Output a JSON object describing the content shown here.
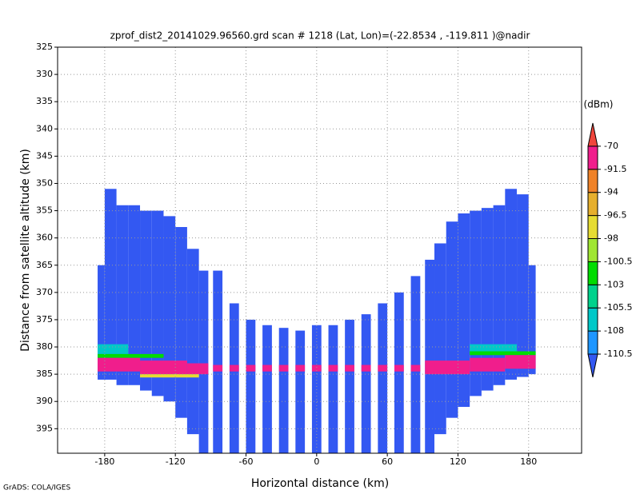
{
  "chart_data": {
    "type": "heatmap",
    "title": "zprof_dist2_20141029.96560.grd  scan # 1218  (Lat, Lon)=(-22.8534 , -119.811 )@nadir",
    "x_label": "Horizontal distance (km)",
    "y_label": "Distance from satellite altitude (km)",
    "footer": "GrADS: COLA/IGES",
    "colorbar_unit": "(dBm)",
    "xlim": [
      -220,
      225
    ],
    "xticks": [
      -180,
      -120,
      -60,
      0,
      60,
      120,
      180
    ],
    "ylim": [
      325,
      399.5
    ],
    "y_inverted": true,
    "yticks": [
      325,
      330,
      335,
      340,
      345,
      350,
      355,
      360,
      365,
      370,
      375,
      380,
      385,
      390,
      395
    ],
    "grid": true,
    "levels": [
      -110.5,
      -108,
      -105.5,
      -103,
      -100.5,
      -98,
      -96.5,
      -94,
      -91.5,
      -70
    ],
    "colors": [
      "#3358f2",
      "#1e96ff",
      "#00c8c8",
      "#00d28c",
      "#00dc00",
      "#a0e632",
      "#e6dc32",
      "#e6af2d",
      "#f08228",
      "#f01e8c",
      "#f0463c"
    ],
    "cells": [
      {
        "x": [
          -186,
          -180
        ],
        "alt": [
          365,
          386
        ],
        "dBm": -115
      },
      {
        "x": [
          -180,
          -170
        ],
        "alt": [
          351,
          386
        ],
        "dBm": -115
      },
      {
        "x": [
          -170,
          -160
        ],
        "alt": [
          354,
          387
        ],
        "dBm": -115
      },
      {
        "x": [
          -160,
          -150
        ],
        "alt": [
          354,
          387
        ],
        "dBm": -115
      },
      {
        "x": [
          -150,
          -140
        ],
        "alt": [
          355,
          388
        ],
        "dBm": -115
      },
      {
        "x": [
          -140,
          -130
        ],
        "alt": [
          355,
          389
        ],
        "dBm": -115
      },
      {
        "x": [
          -130,
          -120
        ],
        "alt": [
          356,
          390
        ],
        "dBm": -115
      },
      {
        "x": [
          -120,
          -110
        ],
        "alt": [
          358,
          393
        ],
        "dBm": -115
      },
      {
        "x": [
          -110,
          -100
        ],
        "alt": [
          362,
          396
        ],
        "dBm": -115
      },
      {
        "x": [
          -100,
          -92
        ],
        "alt": [
          366,
          399.5
        ],
        "dBm": -115
      },
      {
        "x": [
          -88,
          -80
        ],
        "alt": [
          366,
          399.5
        ],
        "dBm": -115
      },
      {
        "x": [
          -74,
          -66
        ],
        "alt": [
          372,
          399.5
        ],
        "dBm": -115
      },
      {
        "x": [
          -60,
          -52
        ],
        "alt": [
          375,
          399.5
        ],
        "dBm": -115
      },
      {
        "x": [
          -46,
          -38
        ],
        "alt": [
          376,
          399.5
        ],
        "dBm": -115
      },
      {
        "x": [
          -32,
          -24
        ],
        "alt": [
          376.5,
          399.5
        ],
        "dBm": -115
      },
      {
        "x": [
          -18,
          -10
        ],
        "alt": [
          377,
          399.5
        ],
        "dBm": -115
      },
      {
        "x": [
          -4,
          4
        ],
        "alt": [
          376,
          399.5
        ],
        "dBm": -115
      },
      {
        "x": [
          10,
          18
        ],
        "alt": [
          376,
          399.5
        ],
        "dBm": -115
      },
      {
        "x": [
          24,
          32
        ],
        "alt": [
          375,
          399.5
        ],
        "dBm": -115
      },
      {
        "x": [
          38,
          46
        ],
        "alt": [
          374,
          399.5
        ],
        "dBm": -115
      },
      {
        "x": [
          52,
          60
        ],
        "alt": [
          372,
          399.5
        ],
        "dBm": -115
      },
      {
        "x": [
          66,
          74
        ],
        "alt": [
          370,
          399.5
        ],
        "dBm": -115
      },
      {
        "x": [
          80,
          88
        ],
        "alt": [
          367,
          399.5
        ],
        "dBm": -115
      },
      {
        "x": [
          92,
          100
        ],
        "alt": [
          364,
          399.5
        ],
        "dBm": -115
      },
      {
        "x": [
          100,
          110
        ],
        "alt": [
          361,
          396
        ],
        "dBm": -115
      },
      {
        "x": [
          110,
          120
        ],
        "alt": [
          357,
          393
        ],
        "dBm": -115
      },
      {
        "x": [
          120,
          130
        ],
        "alt": [
          355.5,
          391
        ],
        "dBm": -115
      },
      {
        "x": [
          130,
          140
        ],
        "alt": [
          355,
          389
        ],
        "dBm": -115
      },
      {
        "x": [
          140,
          150
        ],
        "alt": [
          354.5,
          388
        ],
        "dBm": -115
      },
      {
        "x": [
          150,
          160
        ],
        "alt": [
          354,
          387
        ],
        "dBm": -115
      },
      {
        "x": [
          160,
          170
        ],
        "alt": [
          351,
          386
        ],
        "dBm": -115
      },
      {
        "x": [
          170,
          180
        ],
        "alt": [
          352,
          385.5
        ],
        "dBm": -115
      },
      {
        "x": [
          180,
          186
        ],
        "alt": [
          365,
          385
        ],
        "dBm": -115
      },
      {
        "x": [
          -186,
          -160
        ],
        "alt": [
          379.5,
          381.3
        ],
        "dBm": -107
      },
      {
        "x": [
          130,
          170
        ],
        "alt": [
          379.5,
          380.8
        ],
        "dBm": -107
      },
      {
        "x": [
          -186,
          -130
        ],
        "alt": [
          381.3,
          382
        ],
        "dBm": -101
      },
      {
        "x": [
          130,
          186
        ],
        "alt": [
          380.8,
          381.5
        ],
        "dBm": -101
      },
      {
        "x": [
          -186,
          -150
        ],
        "alt": [
          382,
          384.5
        ],
        "dBm": -80
      },
      {
        "x": [
          -150,
          -110
        ],
        "alt": [
          382.5,
          385
        ],
        "dBm": -80
      },
      {
        "x": [
          -110,
          -92
        ],
        "alt": [
          383,
          385
        ],
        "dBm": -80
      },
      {
        "x": [
          -150,
          -100
        ],
        "alt": [
          385,
          385.6
        ],
        "dBm": -97
      },
      {
        "x": [
          -88,
          -80
        ],
        "alt": [
          383.3,
          384.5
        ],
        "dBm": -80
      },
      {
        "x": [
          -74,
          -66
        ],
        "alt": [
          383.3,
          384.5
        ],
        "dBm": -80
      },
      {
        "x": [
          -60,
          -52
        ],
        "alt": [
          383.3,
          384.5
        ],
        "dBm": -80
      },
      {
        "x": [
          -46,
          -38
        ],
        "alt": [
          383.3,
          384.5
        ],
        "dBm": -80
      },
      {
        "x": [
          -32,
          -24
        ],
        "alt": [
          383.3,
          384.5
        ],
        "dBm": -80
      },
      {
        "x": [
          -18,
          -10
        ],
        "alt": [
          383.3,
          384.5
        ],
        "dBm": -80
      },
      {
        "x": [
          -4,
          4
        ],
        "alt": [
          383.3,
          384.5
        ],
        "dBm": -80
      },
      {
        "x": [
          10,
          18
        ],
        "alt": [
          383.3,
          384.5
        ],
        "dBm": -80
      },
      {
        "x": [
          24,
          32
        ],
        "alt": [
          383.3,
          384.5
        ],
        "dBm": -80
      },
      {
        "x": [
          38,
          46
        ],
        "alt": [
          383.3,
          384.5
        ],
        "dBm": -80
      },
      {
        "x": [
          52,
          60
        ],
        "alt": [
          383.3,
          384.5
        ],
        "dBm": -80
      },
      {
        "x": [
          66,
          74
        ],
        "alt": [
          383.3,
          384.5
        ],
        "dBm": -80
      },
      {
        "x": [
          80,
          88
        ],
        "alt": [
          383.3,
          384.5
        ],
        "dBm": -80
      },
      {
        "x": [
          92,
          130
        ],
        "alt": [
          382.5,
          385
        ],
        "dBm": -80
      },
      {
        "x": [
          130,
          160
        ],
        "alt": [
          382,
          384.5
        ],
        "dBm": -80
      },
      {
        "x": [
          160,
          186
        ],
        "alt": [
          381.5,
          384
        ],
        "dBm": -80
      }
    ]
  }
}
